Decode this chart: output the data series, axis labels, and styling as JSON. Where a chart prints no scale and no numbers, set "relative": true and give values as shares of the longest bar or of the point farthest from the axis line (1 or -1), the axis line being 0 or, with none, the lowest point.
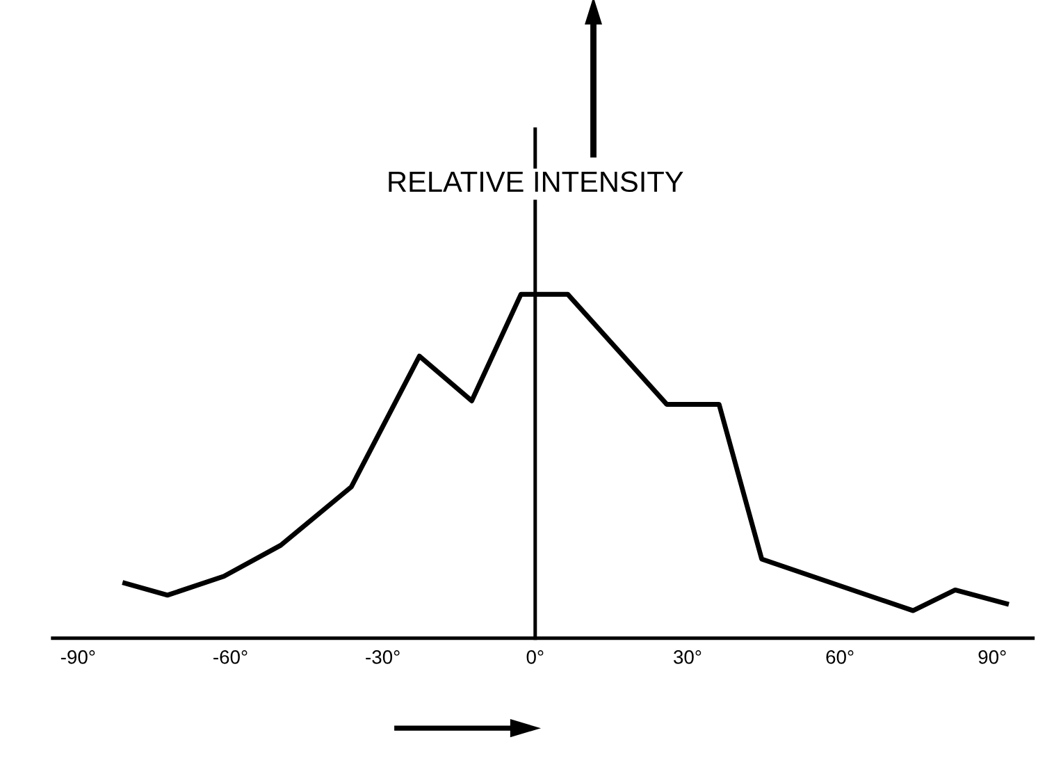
{
  "chart_data": {
    "type": "line",
    "relative": true,
    "ylabel": "RELATIVE INTENSITY",
    "color": "#000000",
    "x": [
      -80.8,
      -72.4,
      -61.3,
      -50.1,
      -36.2,
      -22.8,
      -12.5,
      -2.8,
      6.4,
      25.9,
      36.2,
      44.6,
      74.4,
      82.7,
      92.8
    ],
    "values": [
      0.16,
      0.125,
      0.18,
      0.27,
      0.44,
      0.82,
      0.69,
      1,
      1,
      0.68,
      0.68,
      0.23,
      0.08,
      0.14,
      0.1
    ],
    "xlim": [
      -95,
      98
    ],
    "xticks": [
      {
        "value": -90,
        "label": "-90°"
      },
      {
        "value": -60,
        "label": "-60°"
      },
      {
        "value": -30,
        "label": "-30°"
      },
      {
        "value": 0,
        "label": "0°"
      },
      {
        "value": 30,
        "label": "30°"
      },
      {
        "value": 60,
        "label": "60°"
      },
      {
        "value": 90,
        "label": "90°"
      }
    ],
    "marker": "none",
    "line_style": "solid"
  }
}
